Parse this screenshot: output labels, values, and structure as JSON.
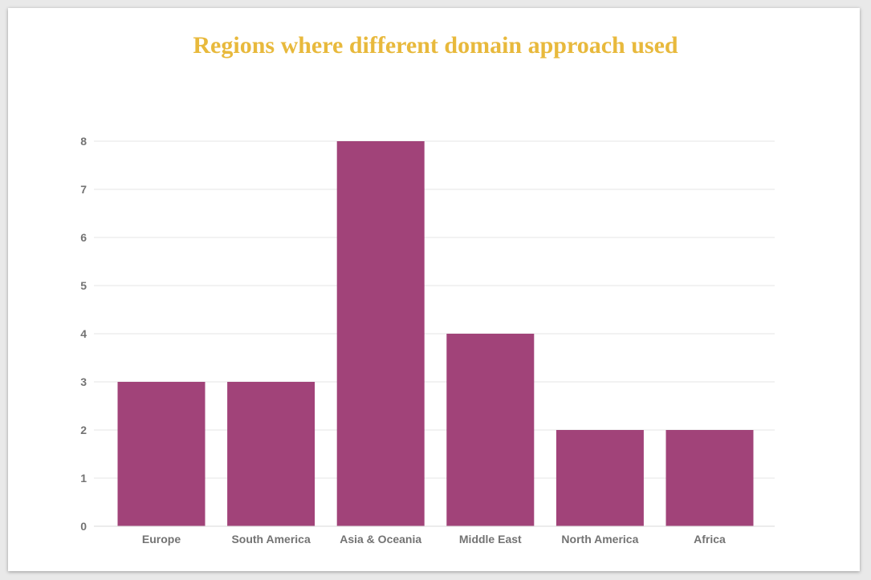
{
  "chart_data": {
    "type": "bar",
    "title": "Regions where different domain approach used",
    "categories": [
      "Europe",
      "South America",
      "Asia & Oceania",
      "Middle East",
      "North America",
      "Africa"
    ],
    "values": [
      3,
      3,
      8,
      4,
      2,
      2
    ],
    "yticks": [
      "0",
      "1",
      "2",
      "3",
      "4",
      "5",
      "6",
      "7",
      "8"
    ],
    "ylim": [
      0,
      8
    ],
    "xlabel": "",
    "ylabel": "",
    "grid": true,
    "legend": "none",
    "bar_color": "#a14379",
    "grid_color": "#e6e6e6",
    "title_color": "#e8b93c"
  }
}
